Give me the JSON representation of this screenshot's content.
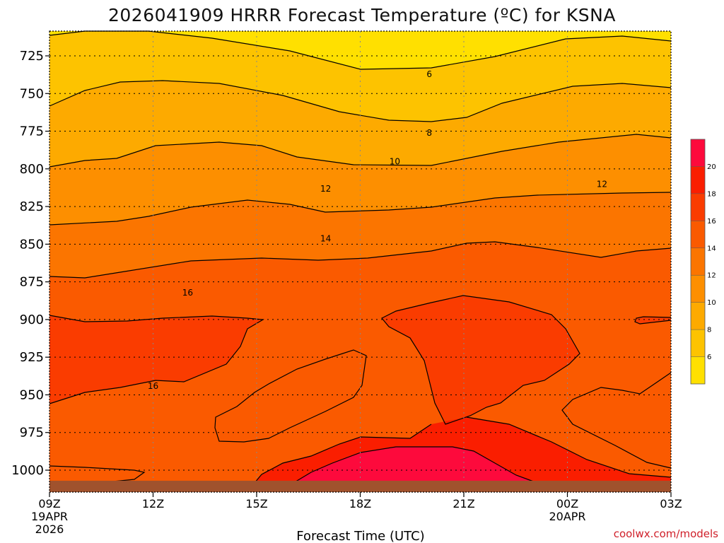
{
  "chart_data": {
    "type": "heatmap",
    "title": "2026041909 HRRR Forecast Temperature (ºC) for KSNA",
    "xlabel": "Forecast Time (UTC)",
    "ylabel": "",
    "x_ticks": [
      "09Z",
      "12Z",
      "15Z",
      "18Z",
      "21Z",
      "00Z",
      "03Z"
    ],
    "x_date_labels": [
      {
        "tick": "09Z",
        "lines": [
          "19APR",
          "2026"
        ]
      },
      {
        "tick": "00Z",
        "lines": [
          "20APR"
        ]
      }
    ],
    "xlim_hours": [
      9,
      27
    ],
    "y_ticks": [
      725,
      750,
      775,
      800,
      825,
      850,
      875,
      900,
      925,
      950,
      975,
      1000
    ],
    "ylim": [
      712,
      1010
    ],
    "y_scale": "pressure (hPa), increasing downward",
    "ground_level_hpa": 1007,
    "grid": true,
    "contour_levels": [
      6,
      8,
      10,
      12,
      14,
      16,
      18,
      20
    ],
    "contour_labels": [
      {
        "value": "6",
        "x_hour": 20,
        "p": 737
      },
      {
        "value": "8",
        "x_hour": 20,
        "p": 776
      },
      {
        "value": "10",
        "x_hour": 19,
        "p": 795
      },
      {
        "value": "12",
        "x_hour": 17,
        "p": 813
      },
      {
        "value": "12",
        "x_hour": 25,
        "p": 810
      },
      {
        "value": "14",
        "x_hour": 17,
        "p": 846
      },
      {
        "value": "16",
        "x_hour": 13,
        "p": 882
      },
      {
        "value": "16",
        "x_hour": 12,
        "p": 944
      }
    ],
    "colorbar": {
      "tick_labels": [
        "6",
        "8",
        "10",
        "12",
        "14",
        "16",
        "18",
        "20"
      ],
      "bins": [
        {
          "upper": "",
          "color": "#ffe000"
        },
        {
          "upper": "6",
          "color": "#fdc300"
        },
        {
          "upper": "8",
          "color": "#fdaa00"
        },
        {
          "upper": "10",
          "color": "#fd8f00"
        },
        {
          "upper": "12",
          "color": "#fb7500"
        },
        {
          "upper": "14",
          "color": "#fa5a00"
        },
        {
          "upper": "16",
          "color": "#fa3c00"
        },
        {
          "upper": "18",
          "color": "#fa1e00"
        },
        {
          "upper": "20",
          "color": "#fd0a3c"
        }
      ]
    },
    "ground_color": "#a0522d",
    "credit": "coolwx.com/models"
  }
}
